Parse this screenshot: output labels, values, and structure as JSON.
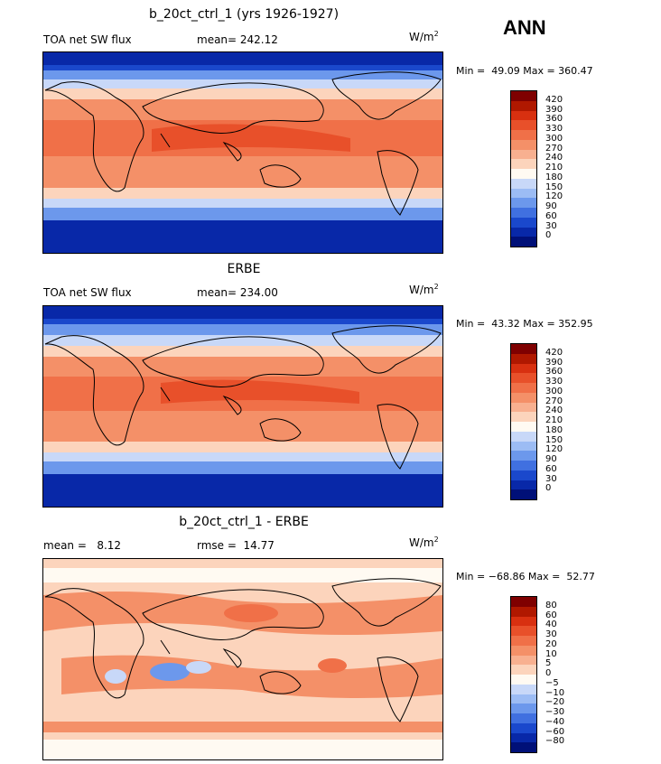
{
  "season": "ANN",
  "units": {
    "base": "W/m",
    "sup": "2"
  },
  "panels": [
    {
      "title": "b_20ct_ctrl_1 (yrs 1926-1927)",
      "left_label": "TOA net SW flux",
      "center_label": "mean= 242.12",
      "minmax": "Min =  49.09 Max = 360.47",
      "scale": "abs"
    },
    {
      "title": "ERBE",
      "left_label": "TOA net SW flux",
      "center_label": "mean= 234.00",
      "minmax": "Min =  43.32 Max = 352.95",
      "scale": "abs"
    },
    {
      "title": "b_20ct_ctrl_1 - ERBE",
      "left_label": "mean =   8.12",
      "center_label": "rmse =  14.77",
      "minmax": "Min = −68.86 Max =  52.77",
      "scale": "diff"
    }
  ],
  "colorbars": {
    "abs": {
      "labels": [
        "420",
        "390",
        "360",
        "330",
        "300",
        "270",
        "240",
        "210",
        "180",
        "150",
        "120",
        "90",
        "60",
        "30",
        "0"
      ],
      "colors": [
        "#7f0000",
        "#b01800",
        "#d83010",
        "#e8502a",
        "#f07048",
        "#f49068",
        "#f8b090",
        "#fcd4bc",
        "#fffaf2",
        "#c8d8f8",
        "#9cbcf4",
        "#6c98ec",
        "#4070e0",
        "#1a48cc",
        "#0828a8",
        "#001078"
      ]
    },
    "diff": {
      "labels": [
        "80",
        "60",
        "40",
        "30",
        "20",
        "10",
        "5",
        "0",
        "−5",
        "−10",
        "−20",
        "−30",
        "−40",
        "−60",
        "−80"
      ],
      "colors": [
        "#7f0000",
        "#b01800",
        "#d83010",
        "#e8502a",
        "#f07048",
        "#f49068",
        "#f8b090",
        "#fcd4bc",
        "#fffaf2",
        "#c8d8f8",
        "#9cbcf4",
        "#6c98ec",
        "#4070e0",
        "#1a48cc",
        "#0828a8",
        "#001078"
      ]
    }
  }
}
